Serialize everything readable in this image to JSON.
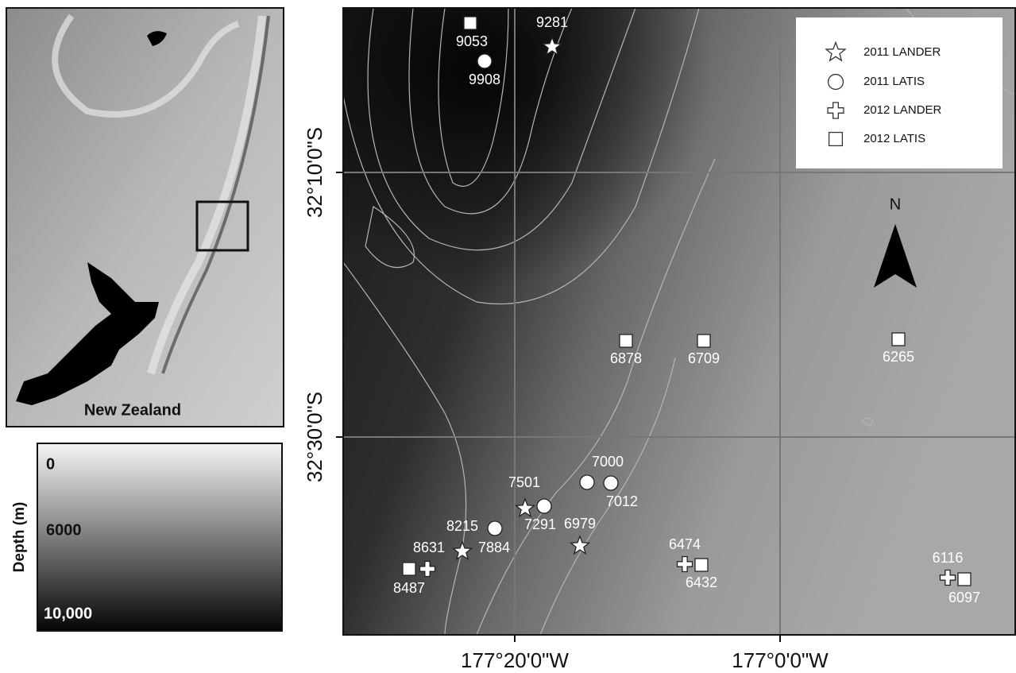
{
  "inset_map": {
    "label": "New Zealand"
  },
  "depth_legend": {
    "title": "Depth (m)",
    "labels": [
      "0",
      "6000",
      "10,000"
    ]
  },
  "main_map": {
    "latitude_labels": [
      "32°10'0\"S",
      "32°30'0\"S"
    ],
    "longitude_labels": [
      "177°20'0\"W",
      "177°0'0\"W"
    ],
    "north_label": "N",
    "legend": [
      "2011 LANDER",
      "2011 LATIS",
      "2012 LANDER",
      "2012 LATIS"
    ],
    "sites": [
      "9053",
      "9908",
      "9281",
      "6878",
      "6709",
      "6265",
      "7000",
      "7012",
      "7501",
      "7291",
      "8215",
      "7884",
      "6979",
      "8631",
      "8487",
      "6474",
      "6432",
      "6116",
      "6097"
    ]
  }
}
